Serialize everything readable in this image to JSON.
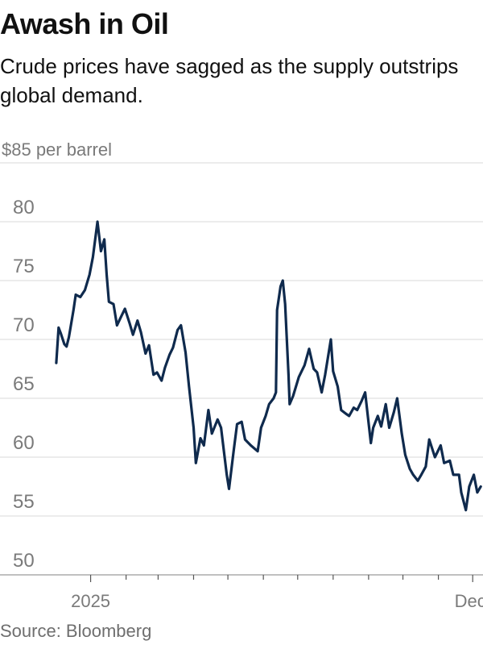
{
  "title": "Awash in Oil",
  "subtitle": "Crude prices have sagged as the supply outstrips global demand.",
  "source": "Source: Bloomberg",
  "colors": {
    "line": "#0f2a4d",
    "grid": "#d9d9d9",
    "axis_text": "#7a7a7a",
    "text": "#111111"
  },
  "chart_data": {
    "type": "line",
    "title": "Awash in Oil",
    "subtitle": "Crude prices have sagged as the supply outstrips global demand.",
    "unit": "per barrel",
    "ylim": [
      50,
      85
    ],
    "yticks": [
      50,
      55,
      60,
      65,
      70,
      75,
      80,
      85
    ],
    "ytick_labels": [
      "50",
      "55",
      "60",
      "65",
      "70",
      "75",
      "80",
      "$85"
    ],
    "ytick_suffix_top": "per barrel",
    "xlim": [
      "2024-11-25",
      "2025-12-10"
    ],
    "x_major_labels": [
      {
        "x": "2025-01-01",
        "label": "2025"
      },
      {
        "x": "2025-12-01",
        "label": "Dec."
      }
    ],
    "x_month_ticks": [
      "2025-01-01",
      "2025-02-01",
      "2025-03-01",
      "2025-04-01",
      "2025-05-01",
      "2025-06-01",
      "2025-07-01",
      "2025-08-01",
      "2025-09-01",
      "2025-10-01",
      "2025-11-01",
      "2025-12-01"
    ],
    "grid": true,
    "series": [
      {
        "x": [
          "2024-12-02",
          "2024-12-04",
          "2024-12-06",
          "2024-12-09",
          "2024-12-11",
          "2024-12-13",
          "2024-12-17",
          "2024-12-19",
          "2024-12-23",
          "2024-12-27",
          "2024-12-31",
          "2025-01-03",
          "2025-01-07",
          "2025-01-10",
          "2025-01-13",
          "2025-01-15",
          "2025-01-17",
          "2025-01-21",
          "2025-01-24",
          "2025-01-28",
          "2025-01-31",
          "2025-02-04",
          "2025-02-07",
          "2025-02-11",
          "2025-02-14",
          "2025-02-18",
          "2025-02-21",
          "2025-02-25",
          "2025-02-28",
          "2025-03-04",
          "2025-03-07",
          "2025-03-11",
          "2025-03-14",
          "2025-03-18",
          "2025-03-21",
          "2025-03-25",
          "2025-03-28",
          "2025-04-01",
          "2025-04-03",
          "2025-04-07",
          "2025-04-10",
          "2025-04-14",
          "2025-04-17",
          "2025-04-22",
          "2025-04-25",
          "2025-04-30",
          "2025-05-02",
          "2025-05-06",
          "2025-05-09",
          "2025-05-13",
          "2025-05-16",
          "2025-05-21",
          "2025-05-27",
          "2025-05-30",
          "2025-06-03",
          "2025-06-06",
          "2025-06-10",
          "2025-06-12",
          "2025-06-13",
          "2025-06-16",
          "2025-06-18",
          "2025-06-20",
          "2025-06-23",
          "2025-06-24",
          "2025-06-27",
          "2025-07-02",
          "2025-07-07",
          "2025-07-11",
          "2025-07-15",
          "2025-07-18",
          "2025-07-22",
          "2025-07-25",
          "2025-07-30",
          "2025-08-01",
          "2025-08-05",
          "2025-08-08",
          "2025-08-12",
          "2025-08-15",
          "2025-08-19",
          "2025-08-22",
          "2025-08-26",
          "2025-08-29",
          "2025-09-03",
          "2025-09-05",
          "2025-09-09",
          "2025-09-12",
          "2025-09-16",
          "2025-09-19",
          "2025-09-23",
          "2025-09-26",
          "2025-09-30",
          "2025-10-03",
          "2025-10-07",
          "2025-10-10",
          "2025-10-14",
          "2025-10-17",
          "2025-10-21",
          "2025-10-24",
          "2025-10-29",
          "2025-11-03",
          "2025-11-06",
          "2025-11-11",
          "2025-11-14",
          "2025-11-19",
          "2025-11-21",
          "2025-11-25",
          "2025-11-28",
          "2025-12-02",
          "2025-12-05",
          "2025-12-08"
        ],
        "y": [
          68.0,
          71.0,
          70.5,
          69.6,
          69.4,
          70.2,
          72.5,
          73.8,
          73.6,
          74.2,
          75.5,
          77.0,
          80.0,
          77.5,
          78.5,
          75.5,
          73.2,
          73.0,
          71.2,
          72.0,
          72.6,
          71.4,
          70.4,
          71.6,
          70.6,
          68.8,
          69.5,
          67.0,
          67.2,
          66.5,
          67.6,
          68.7,
          69.3,
          70.8,
          71.2,
          68.9,
          66.0,
          62.5,
          59.5,
          61.6,
          61.0,
          64.0,
          62.0,
          63.2,
          62.5,
          58.5,
          57.3,
          60.5,
          62.8,
          63.0,
          61.5,
          61.0,
          60.5,
          62.5,
          63.5,
          64.5,
          65.0,
          65.5,
          72.5,
          74.5,
          75.0,
          73.0,
          67.0,
          64.5,
          65.2,
          66.8,
          67.8,
          69.2,
          67.5,
          67.2,
          65.5,
          67.0,
          70.0,
          67.3,
          66.0,
          64.0,
          63.7,
          63.5,
          64.2,
          64.0,
          64.8,
          65.5,
          61.2,
          62.5,
          63.5,
          62.6,
          64.5,
          62.5,
          63.8,
          65.0,
          62.0,
          60.2,
          59.0,
          58.5,
          58.0,
          58.5,
          59.2,
          61.5,
          60.0,
          61.0,
          59.5,
          59.7,
          58.5,
          58.5,
          57.0,
          55.5,
          57.5,
          58.5,
          57.0,
          57.5
        ]
      }
    ]
  }
}
